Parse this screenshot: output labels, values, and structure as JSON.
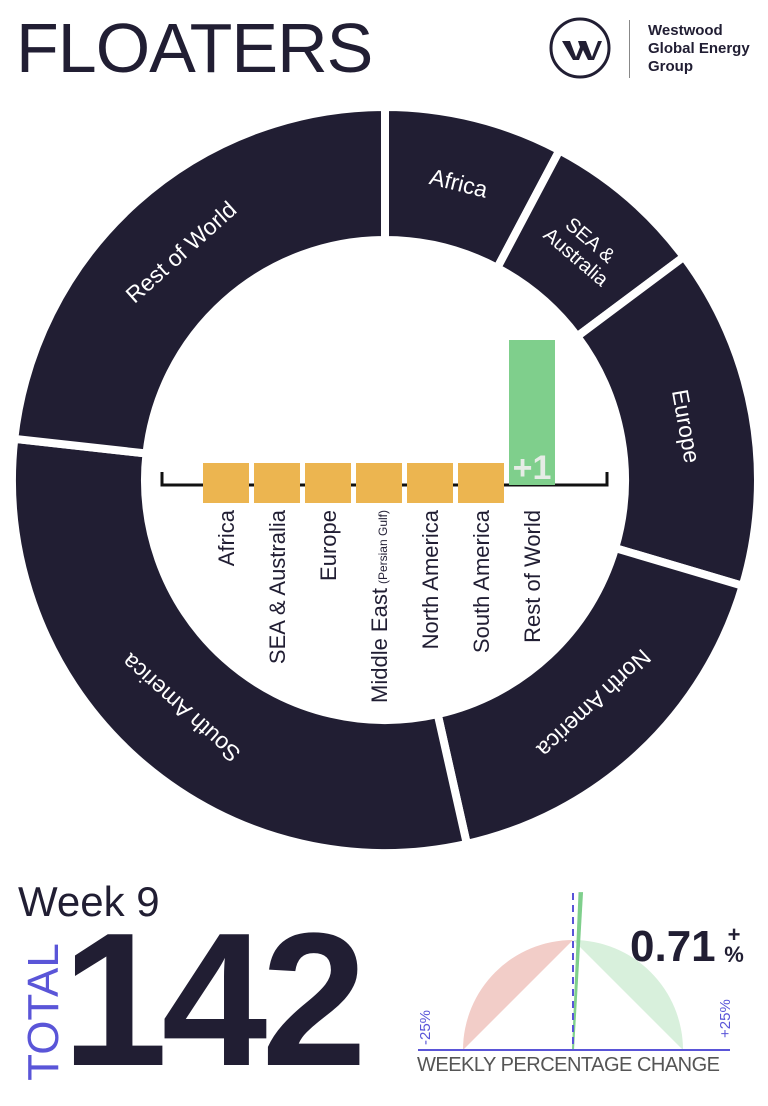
{
  "title": "FLOATERS",
  "logo": {
    "lines": [
      "Westwood",
      "Global Energy",
      "Group"
    ],
    "icon": "w-circle-logo"
  },
  "colors": {
    "dark": "#211e33",
    "orange": "#ecb550",
    "green": "#7fcf8c",
    "accent": "#5a55d8",
    "gauge_neg": "#f2cdc8",
    "gauge_pos": "#d8f0dc"
  },
  "chart_data": [
    {
      "type": "pie",
      "variant": "donut",
      "categories": [
        "Africa",
        "SEA & Australia",
        "Europe",
        "Middle East (Persian Gulf)",
        "North America",
        "South America",
        "Rest of World"
      ],
      "labels": [
        "Africa",
        "SEA &|Australia",
        "Europe",
        "",
        "North America",
        "South America",
        "Rest of World"
      ],
      "values": [
        11,
        10,
        21,
        0,
        24,
        43,
        33
      ]
    },
    {
      "type": "bar",
      "title": "",
      "categories": [
        "Africa",
        "SEA & Australia",
        "Europe",
        "Middle East",
        "North America",
        "South America",
        "Rest of World"
      ],
      "category_notes": [
        "",
        "",
        "",
        "(Persian Gulf)",
        "",
        "",
        ""
      ],
      "values": [
        0,
        0,
        0,
        0,
        0,
        0,
        1
      ],
      "data_labels": [
        "",
        "",
        "",
        "",
        "",
        "",
        "+1"
      ]
    },
    {
      "type": "gauge",
      "value": 0.71,
      "range": [
        -25,
        25
      ],
      "min_label": "-25%",
      "max_label": "+25%",
      "xlabel": "WEEKLY PERCENTAGE CHANGE"
    }
  ],
  "week": "Week 9",
  "total_label": "TOTAL",
  "total": "142",
  "pct_value": "0.71",
  "pct_sign": "+",
  "pct_unit": "%"
}
